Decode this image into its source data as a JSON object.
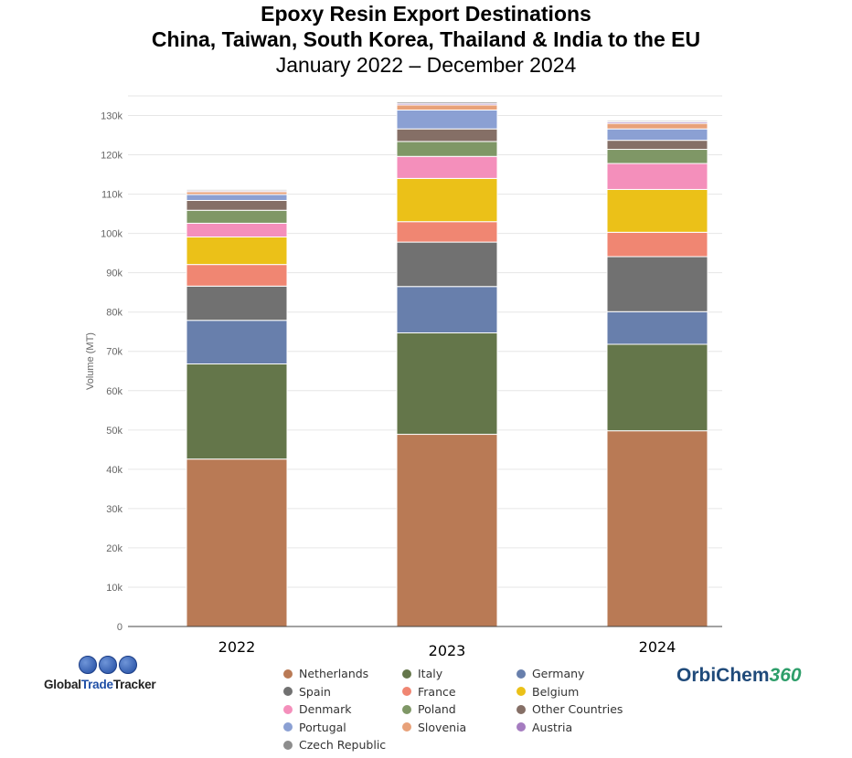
{
  "title": {
    "line1": "Epoxy Resin Export Destinations",
    "line2": "China, Taiwan, South Korea, Thailand & India to the EU",
    "line3": "January 2022 – December 2024"
  },
  "chart_data": {
    "type": "bar",
    "stacked": true,
    "categories": [
      "2022",
      "2023",
      "2024"
    ],
    "ylabel": "Volume (MT)",
    "xlabel": "",
    "ylim": [
      0,
      135000
    ],
    "yticks": [
      0,
      10000,
      20000,
      30000,
      40000,
      50000,
      60000,
      70000,
      80000,
      90000,
      100000,
      110000,
      120000,
      130000
    ],
    "ytick_labels": [
      "0",
      "10k",
      "20k",
      "30k",
      "40k",
      "50k",
      "60k",
      "70k",
      "80k",
      "90k",
      "100k",
      "110k",
      "120k",
      "130k"
    ],
    "grid": true,
    "legend_position": "bottom",
    "series": [
      {
        "name": "Netherlands",
        "color": "#b97a55",
        "values": [
          42600,
          48900,
          49800
        ]
      },
      {
        "name": "Italy",
        "color": "#64764a",
        "values": [
          24200,
          25800,
          22000
        ]
      },
      {
        "name": "Germany",
        "color": "#687fac",
        "values": [
          11100,
          11800,
          8300
        ]
      },
      {
        "name": "Spain",
        "color": "#717171",
        "values": [
          8700,
          11300,
          14000
        ]
      },
      {
        "name": "France",
        "color": "#f08672",
        "values": [
          5500,
          5200,
          6200
        ]
      },
      {
        "name": "Belgium",
        "color": "#ebc118",
        "values": [
          7000,
          11000,
          10900
        ]
      },
      {
        "name": "Denmark",
        "color": "#f48fbb",
        "values": [
          3500,
          5600,
          6600
        ]
      },
      {
        "name": "Poland",
        "color": "#7f9766",
        "values": [
          3300,
          3800,
          3600
        ]
      },
      {
        "name": "Other Countries",
        "color": "#856f66",
        "values": [
          2500,
          3200,
          2300
        ]
      },
      {
        "name": "Portugal",
        "color": "#8ba0d3",
        "values": [
          1500,
          4800,
          2900
        ]
      },
      {
        "name": "Slovenia",
        "color": "#e8a179",
        "values": [
          700,
          1300,
          1400
        ]
      },
      {
        "name": "Austria",
        "color": "#a57cc0",
        "values": [
          300,
          400,
          400
        ]
      },
      {
        "name": "Czech Republic",
        "color": "#8d8d8d",
        "values": [
          300,
          400,
          300
        ]
      }
    ]
  },
  "logos": {
    "left_part1": "Global",
    "left_part2": "Trade",
    "left_part3": "Tracker",
    "right_part1": "OrbiChem",
    "right_part2": "360"
  }
}
